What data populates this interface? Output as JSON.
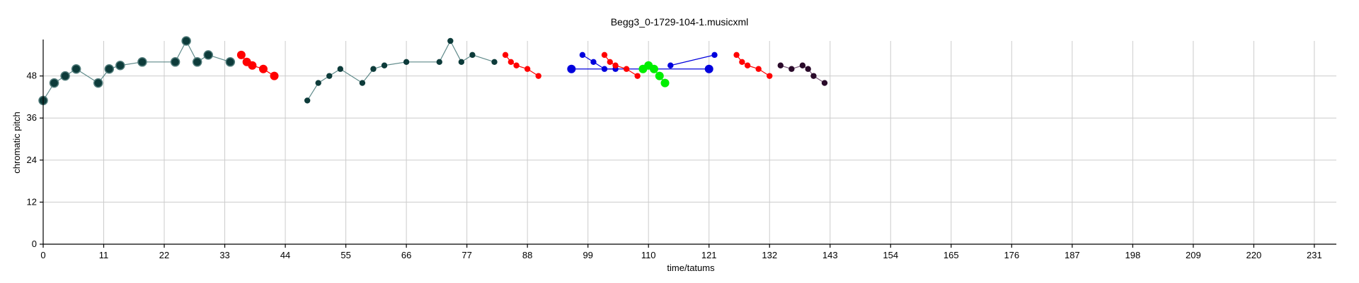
{
  "chart_data": {
    "type": "scatter",
    "title": "Begg3_0-1729-104-1.musicxml",
    "xlabel": "time/tatums",
    "ylabel": "chromatic pitch",
    "xlim": [
      0,
      235
    ],
    "ylim": [
      0,
      58
    ],
    "xticks": [
      0,
      11,
      22,
      33,
      44,
      55,
      66,
      77,
      88,
      99,
      110,
      121,
      132,
      143,
      154,
      165,
      176,
      187,
      198,
      209,
      220,
      231
    ],
    "yticks": [
      0,
      12,
      24,
      36,
      48
    ],
    "grid": true,
    "colors": {
      "dark": "#0d3b3a",
      "dark_line": "#5f8a8a",
      "red": "#ff0000",
      "green": "#00ee00",
      "blue": "#0000dd",
      "purple": "#2a0a2a",
      "purple_line": "#7a5a7a"
    },
    "series": [
      {
        "color_key": "dark",
        "line_key": "dark_line",
        "size": "large",
        "points": [
          [
            0,
            41
          ],
          [
            2,
            46
          ],
          [
            4,
            48
          ],
          [
            6,
            50
          ],
          [
            10,
            46
          ],
          [
            12,
            50
          ],
          [
            14,
            51
          ],
          [
            18,
            52
          ],
          [
            24,
            52
          ],
          [
            26,
            58
          ],
          [
            28,
            52
          ],
          [
            30,
            54
          ],
          [
            34,
            52
          ]
        ]
      },
      {
        "color_key": "red",
        "line_key": "red",
        "size": "large",
        "points": [
          [
            36,
            54
          ],
          [
            37,
            52
          ],
          [
            38,
            51
          ],
          [
            40,
            50
          ],
          [
            42,
            48
          ]
        ]
      },
      {
        "color_key": "dark",
        "line_key": "dark_line",
        "size": "small",
        "points": [
          [
            48,
            41
          ],
          [
            50,
            46
          ],
          [
            52,
            48
          ],
          [
            54,
            50
          ],
          [
            58,
            46
          ],
          [
            60,
            50
          ],
          [
            62,
            51
          ],
          [
            66,
            52
          ],
          [
            72,
            52
          ],
          [
            74,
            58
          ],
          [
            76,
            52
          ],
          [
            78,
            54
          ],
          [
            82,
            52
          ]
        ]
      },
      {
        "color_key": "red",
        "line_key": "red",
        "size": "small",
        "points": [
          [
            84,
            54
          ],
          [
            85,
            52
          ],
          [
            86,
            51
          ],
          [
            88,
            50
          ],
          [
            90,
            48
          ]
        ]
      },
      {
        "color_key": "blue",
        "line_key": "blue",
        "size": "large",
        "points": [
          [
            96,
            50
          ],
          [
            121,
            50
          ]
        ]
      },
      {
        "color_key": "blue",
        "line_key": "blue",
        "size": "small",
        "points": [
          [
            98,
            54
          ],
          [
            100,
            52
          ],
          [
            102,
            50
          ],
          [
            104,
            50
          ]
        ]
      },
      {
        "color_key": "red",
        "line_key": "red",
        "size": "small",
        "points": [
          [
            102,
            54
          ],
          [
            103,
            52
          ],
          [
            104,
            51
          ],
          [
            106,
            50
          ],
          [
            108,
            48
          ]
        ]
      },
      {
        "color_key": "green",
        "line_key": "green",
        "size": "large",
        "points": [
          [
            109,
            50
          ],
          [
            110,
            51
          ],
          [
            111,
            50
          ],
          [
            112,
            48
          ],
          [
            113,
            46
          ]
        ]
      },
      {
        "color_key": "blue",
        "line_key": "blue",
        "size": "small",
        "points": [
          [
            114,
            51
          ],
          [
            122,
            54
          ]
        ]
      },
      {
        "color_key": "red",
        "line_key": "red",
        "size": "small",
        "points": [
          [
            126,
            54
          ],
          [
            127,
            52
          ],
          [
            128,
            51
          ],
          [
            130,
            50
          ],
          [
            132,
            48
          ]
        ]
      },
      {
        "color_key": "purple",
        "line_key": "purple_line",
        "size": "small",
        "points": [
          [
            134,
            51
          ],
          [
            136,
            50
          ],
          [
            138,
            51
          ],
          [
            139,
            50
          ],
          [
            140,
            48
          ],
          [
            142,
            46
          ]
        ]
      }
    ]
  }
}
